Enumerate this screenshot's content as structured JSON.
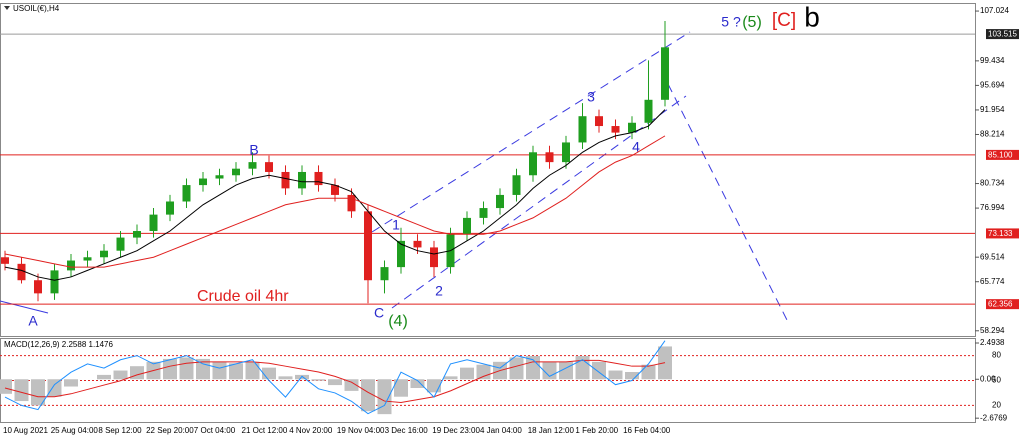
{
  "symbol": "USOIL(€),H4",
  "annotations": [
    {
      "text": "Crude oil 4hr",
      "color": "#e0201f"
    },
    {
      "text": "A",
      "color": "#2a2acc"
    },
    {
      "text": "B",
      "color": "#2a2acc"
    },
    {
      "text": "C",
      "color": "#2a2acc"
    },
    {
      "text": "(4)",
      "color": "#1a8a1a"
    },
    {
      "text": "1",
      "color": "#2a2acc"
    },
    {
      "text": "2",
      "color": "#2a2acc"
    },
    {
      "text": "3",
      "color": "#2a2acc"
    },
    {
      "text": "4",
      "color": "#2a2acc"
    },
    {
      "text": "5 ?",
      "color": "#2a2acc"
    },
    {
      "text": "(5)",
      "color": "#1a8a1a"
    },
    {
      "text": "[C]",
      "color": "#e0201f"
    },
    {
      "text": "b",
      "color": "#000000"
    }
  ],
  "chart_data": [
    {
      "type": "candlestick",
      "up_color": "#1f9e1f",
      "down_color": "#e0201f",
      "open": [
        69.5,
        68.5,
        66.0,
        64.0,
        67.5,
        69.0,
        69.5,
        70.5,
        72.5,
        73.5,
        76.0,
        78.0,
        80.5,
        81.5,
        82.0,
        83.0,
        84.0,
        82.5,
        80.0,
        82.5,
        80.5,
        79.0,
        76.5,
        66.0,
        68.0,
        72.0,
        71.0,
        68.0,
        73.0,
        75.5,
        77.0,
        79.0,
        82.0,
        85.5,
        84.0,
        87.0,
        91.0,
        89.5,
        88.5,
        90.0,
        93.5
      ],
      "high": [
        70.5,
        69.5,
        67.0,
        68.5,
        70.0,
        70.5,
        71.5,
        73.5,
        74.5,
        77.0,
        79.0,
        81.5,
        82.5,
        83.0,
        84.0,
        85.5,
        85.0,
        83.5,
        83.5,
        83.5,
        81.5,
        80.0,
        77.5,
        69.0,
        74.0,
        73.0,
        72.0,
        74.0,
        76.5,
        78.0,
        80.0,
        83.0,
        86.5,
        86.5,
        88.0,
        93.0,
        92.0,
        90.5,
        91.0,
        99.5,
        105.5
      ],
      "low": [
        67.5,
        65.5,
        62.8,
        63.0,
        66.5,
        68.0,
        68.5,
        69.5,
        71.5,
        72.5,
        75.0,
        77.0,
        79.5,
        80.5,
        81.0,
        82.0,
        81.5,
        79.0,
        79.0,
        79.5,
        78.0,
        75.5,
        62.5,
        64.0,
        67.0,
        70.0,
        66.5,
        67.0,
        72.0,
        74.5,
        76.0,
        78.0,
        81.0,
        83.0,
        83.0,
        86.0,
        88.5,
        87.5,
        87.5,
        89.0,
        92.5
      ],
      "close": [
        68.5,
        66.0,
        64.0,
        67.5,
        69.0,
        69.5,
        70.5,
        72.5,
        73.5,
        76.0,
        78.0,
        80.5,
        81.5,
        82.0,
        83.0,
        84.0,
        82.5,
        80.0,
        82.5,
        80.5,
        79.0,
        76.5,
        66.0,
        68.0,
        72.0,
        71.0,
        68.0,
        73.0,
        75.5,
        77.0,
        79.0,
        82.0,
        85.5,
        84.0,
        87.0,
        91.0,
        89.5,
        88.5,
        90.0,
        93.5,
        101.5
      ],
      "lines": [
        {
          "color": "#000000",
          "values": [
            68.0,
            67.5,
            66.5,
            66.0,
            66.5,
            67.5,
            68.5,
            69.5,
            70.5,
            72.0,
            73.5,
            75.5,
            77.5,
            79.0,
            80.5,
            81.5,
            82.0,
            81.5,
            81.0,
            81.0,
            80.5,
            79.5,
            76.5,
            73.5,
            71.5,
            70.5,
            70.0,
            70.5,
            72.0,
            73.5,
            75.5,
            77.5,
            80.0,
            82.0,
            83.5,
            85.5,
            87.0,
            88.0,
            88.5,
            89.5,
            92.0
          ]
        },
        {
          "color": "#e0201f",
          "values": [
            70.0,
            69.5,
            69.0,
            68.5,
            68.0,
            68.0,
            68.0,
            68.5,
            69.0,
            69.5,
            70.5,
            71.5,
            72.5,
            73.5,
            74.5,
            75.5,
            76.5,
            77.5,
            78.0,
            78.5,
            78.5,
            78.5,
            77.5,
            76.5,
            75.5,
            74.5,
            73.5,
            73.0,
            73.0,
            73.0,
            73.5,
            74.5,
            75.5,
            77.0,
            78.5,
            80.5,
            82.5,
            84.0,
            85.0,
            86.5,
            88.0
          ]
        }
      ],
      "ylim": [
        57.5,
        108.1
      ],
      "yticks": [
        107.024,
        99.434,
        95.694,
        91.954,
        88.214,
        80.734,
        76.994,
        69.514,
        65.774,
        58.294
      ],
      "levels": [
        {
          "price": 103.515,
          "color": "#9a9a9a",
          "box": "#222222"
        },
        {
          "price": {
            "value": 85.1,
            "label": "85.100"
          },
          "color": "#e0201f",
          "box": "#e0201f"
        },
        {
          "price": 73.133,
          "color": "#e0201f",
          "box": "#e0201f"
        },
        {
          "price": 62.356,
          "color": "#e0201f",
          "box": "#e0201f"
        }
      ]
    },
    {
      "type": "macd",
      "title": "MACD(12,26,9) 2.2588 1.1476",
      "histogram_color": "#c0c0c0",
      "signal_color": "#e0201f",
      "histogram": [
        -1.0,
        -1.5,
        -1.8,
        -1.2,
        -0.5,
        0.0,
        0.3,
        0.6,
        0.9,
        1.2,
        1.4,
        1.5,
        1.4,
        1.2,
        1.1,
        1.2,
        0.8,
        0.2,
        0.3,
        -0.1,
        -0.4,
        -0.8,
        -2.2,
        -2.4,
        -1.2,
        -0.6,
        -0.9,
        0.2,
        0.8,
        1.0,
        1.2,
        1.5,
        1.6,
        1.2,
        1.2,
        1.6,
        1.2,
        0.6,
        0.5,
        1.0,
        2.2588
      ],
      "signal": [
        -0.6,
        -0.9,
        -1.2,
        -1.2,
        -1.0,
        -0.7,
        -0.4,
        -0.1,
        0.3,
        0.6,
        0.9,
        1.1,
        1.2,
        1.2,
        1.2,
        1.2,
        1.1,
        0.9,
        0.7,
        0.5,
        0.2,
        -0.2,
        -0.9,
        -1.5,
        -1.6,
        -1.4,
        -1.2,
        -0.8,
        -0.3,
        0.2,
        0.6,
        0.9,
        1.2,
        1.2,
        1.2,
        1.3,
        1.3,
        1.1,
        0.9,
        0.9,
        1.1476
      ],
      "oscillator": {
        "color": "#1e90ff",
        "axis": "y2",
        "values": [
          30,
          20,
          15,
          45,
          60,
          70,
          65,
          75,
          80,
          70,
          75,
          80,
          70,
          65,
          70,
          75,
          50,
          30,
          55,
          40,
          35,
          25,
          10,
          20,
          60,
          50,
          30,
          70,
          75,
          70,
          65,
          80,
          75,
          55,
          65,
          75,
          60,
          45,
          50,
          70,
          98
        ]
      },
      "ylim": [
        -2.94,
        2.77
      ],
      "yticks": [
        2.4938,
        {
          "value": 0,
          "label": "0.00"
        },
        -2.6769
      ],
      "y2lim": [
        0,
        100
      ],
      "y2ticks": [
        80,
        50,
        20
      ],
      "y2_line_color": "#e0201f",
      "xtick_labels": [
        "10 Aug 2021",
        "25 Aug 04:00",
        "8 Sep 12:00",
        "22 Sep 20:00",
        "7 Oct 04:00",
        "21 Oct 12:00",
        "4 Nov 20:00",
        "19 Nov 04:00",
        "3 Dec 16:00",
        "19 Dec 23:00",
        "4 Jan 04:00",
        "18 Jan 12:00",
        "1 Feb 20:00",
        "16 Feb 04:00"
      ]
    }
  ]
}
